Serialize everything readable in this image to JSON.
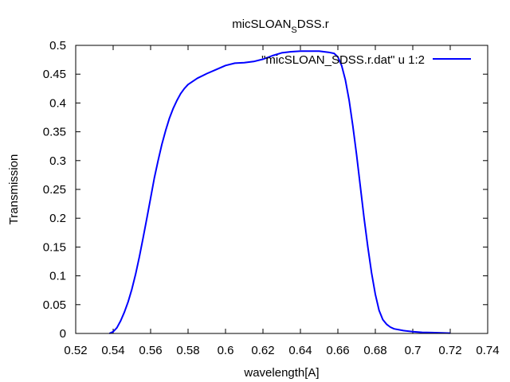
{
  "chart_data": {
    "type": "line",
    "title": "micSLOAN",
    "title_subscript": "S",
    "title_suffix": "DSS.r",
    "xlabel": "wavelength[A]",
    "ylabel": "Transmission",
    "xlim": [
      0.52,
      0.74
    ],
    "ylim": [
      0,
      0.5
    ],
    "xticks": [
      0.52,
      0.54,
      0.56,
      0.58,
      0.6,
      0.62,
      0.64,
      0.66,
      0.68,
      0.7,
      0.72,
      0.74
    ],
    "xtick_labels": [
      "0.52",
      "0.54",
      "0.56",
      "0.58",
      "0.6",
      "0.62",
      "0.64",
      "0.66",
      "0.68",
      "0.7",
      "0.72",
      "0.74"
    ],
    "yticks": [
      0,
      0.05,
      0.1,
      0.15,
      0.2,
      0.25,
      0.3,
      0.35,
      0.4,
      0.45,
      0.5
    ],
    "ytick_labels": [
      "0",
      "0.05",
      "0.1",
      "0.15",
      "0.2",
      "0.25",
      "0.3",
      "0.35",
      "0.4",
      "0.45",
      "0.5"
    ],
    "grid": false,
    "legend_position": "top-right",
    "series": [
      {
        "name": "\"micSLOAN_SDSS.r.dat\" u 1:2",
        "color": "#0000ff",
        "x": [
          0.538,
          0.54,
          0.542,
          0.544,
          0.546,
          0.548,
          0.55,
          0.552,
          0.554,
          0.556,
          0.558,
          0.56,
          0.562,
          0.564,
          0.566,
          0.568,
          0.57,
          0.572,
          0.574,
          0.576,
          0.578,
          0.58,
          0.585,
          0.59,
          0.595,
          0.6,
          0.605,
          0.61,
          0.615,
          0.62,
          0.625,
          0.63,
          0.635,
          0.64,
          0.645,
          0.65,
          0.655,
          0.658,
          0.66,
          0.662,
          0.664,
          0.666,
          0.668,
          0.67,
          0.672,
          0.674,
          0.676,
          0.678,
          0.68,
          0.682,
          0.684,
          0.686,
          0.688,
          0.69,
          0.695,
          0.7,
          0.705,
          0.71,
          0.715,
          0.72
        ],
        "y": [
          0.0,
          0.003,
          0.01,
          0.022,
          0.037,
          0.055,
          0.077,
          0.103,
          0.133,
          0.166,
          0.2,
          0.235,
          0.27,
          0.3,
          0.328,
          0.352,
          0.373,
          0.39,
          0.404,
          0.416,
          0.425,
          0.432,
          0.443,
          0.451,
          0.458,
          0.465,
          0.469,
          0.47,
          0.472,
          0.476,
          0.482,
          0.487,
          0.489,
          0.49,
          0.49,
          0.49,
          0.488,
          0.486,
          0.48,
          0.465,
          0.44,
          0.405,
          0.36,
          0.31,
          0.255,
          0.2,
          0.15,
          0.105,
          0.068,
          0.04,
          0.024,
          0.016,
          0.011,
          0.008,
          0.005,
          0.003,
          0.002,
          0.0015,
          0.001,
          0.0005
        ]
      }
    ]
  }
}
